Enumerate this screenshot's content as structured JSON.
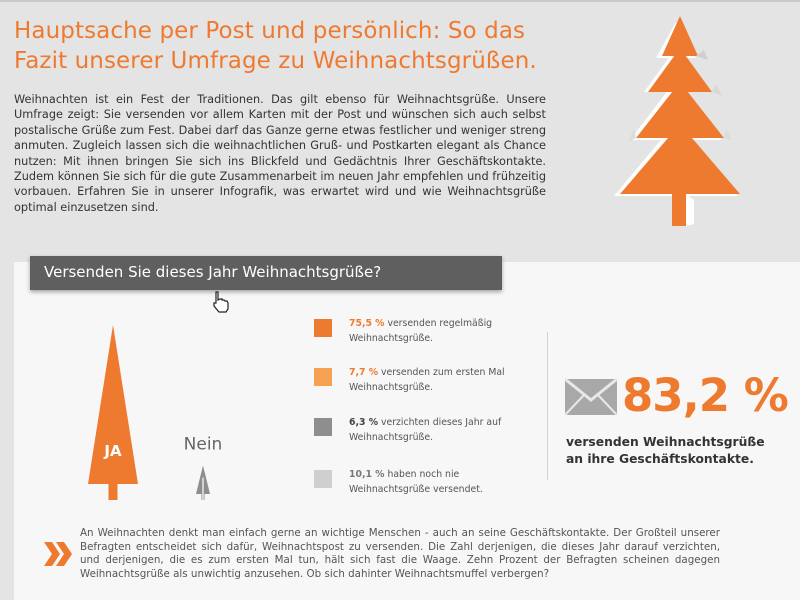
{
  "header": {
    "title_lines": [
      "Hauptsache per Post und persönlich: So das",
      "Fazit unserer Umfrage zu Weihnachtsgrüßen."
    ],
    "intro": "Weihnachten ist ein Fest der Traditionen. Das gilt ebenso für Weihnachtsgrüße. Unsere Umfrage zeigt: Sie versenden vor allem Karten mit der Post und wünschen sich auch selbst postalische Grüße zum Fest. Dabei darf das Ganze gerne etwas festlicher und weniger streng anmuten. Zugleich lassen sich die weihnachtlichen Gruß- und Postkarten elegant als Chance nutzen: Mit ihnen bringen Sie sich ins Blickfeld und Gedächtnis Ihrer Geschäftskontakte. Zudem können Sie sich für die gute Zusammenarbeit im neuen Jahr empfehlen und frühzeitig vorbauen. Erfahren Sie in unserer Infografik, was erwartet wird und wie Weihnachtsgrüße optimal einzusetzen sind."
  },
  "question": "Versenden Sie dieses Jahr Weihnachtsgrüße?",
  "colors": {
    "accent": "#ee7a30",
    "light_orange": "#f5a052",
    "dark_gray": "#8e8e8e",
    "light_gray": "#cfcfcf"
  },
  "chart_data": {
    "type": "bar",
    "categories": [
      "JA",
      "Nein"
    ],
    "values": [
      83.2,
      16.4
    ],
    "segments": [
      {
        "pct": "75,5 %",
        "text": "versenden regelmäßig Weihnachtsgrüße.",
        "value": 75.5,
        "color": "#ee7a30",
        "pct_color": "#ee7a30"
      },
      {
        "pct": "7,7 %",
        "text": "versenden zum ersten Mal Weihnachtsgrüße.",
        "value": 7.7,
        "color": "#f5a052",
        "pct_color": "#ee7a30"
      },
      {
        "pct": "6,3 %",
        "text": "verzichten dieses Jahr auf Weihnachtsgrüße.",
        "value": 6.3,
        "color": "#8e8e8e",
        "pct_color": "#444444"
      },
      {
        "pct": "10,1 %",
        "text": "haben noch nie Weihnachtsgrüße versendet.",
        "value": 10.1,
        "color": "#cfcfcf",
        "pct_color": "#777777"
      }
    ]
  },
  "summary": {
    "value": "83,2 %",
    "caption": "versenden Weihnachtsgrüße an ihre Geschäftskontakte."
  },
  "footer_text": "An Weihnachten denkt man einfach gerne an wichtige Menschen - auch an seine Geschäftskontakte. Der Großteil unserer Befragten entscheidet sich dafür, Weihnachtspost zu versenden. Die Zahl derjenigen, die dieses Jahr darauf verzichten, und derjenigen, die es zum ersten Mal tun, hält sich fast die Waage. Zehn Prozent der Befragten scheinen dagegen Weihnachtsgrüße als unwichtig anzusehen. Ob sich dahinter Weihnachtsmuffel verbergen?"
}
